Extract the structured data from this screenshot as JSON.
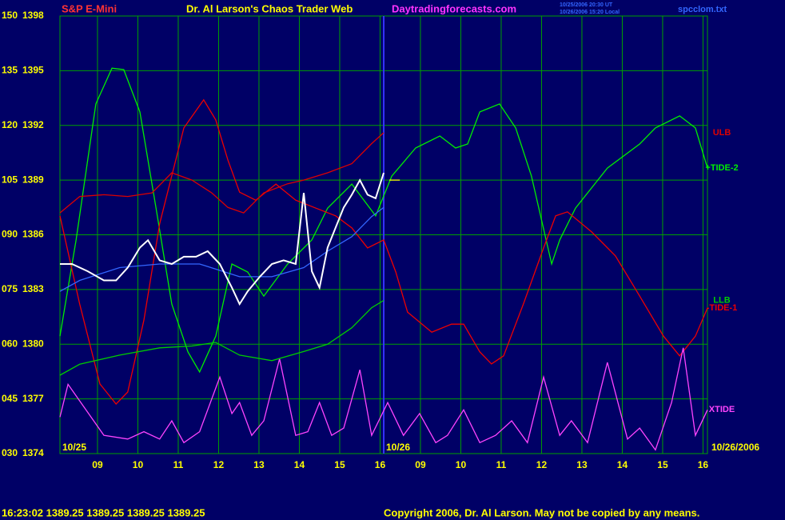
{
  "header": {
    "symbol": "S&P E-Mini",
    "title": "Dr. Al Larson's Chaos Trader Web",
    "site": "Daytradingforecasts.com",
    "notes": [
      "10/25/2006 20:30 UT",
      "10/26/2006 15:20 Local"
    ],
    "file": "spcclom.txt"
  },
  "chart_data": {
    "type": "line",
    "grid": true,
    "xlim": [
      -0.93,
      15.11
    ],
    "xticks": [
      {
        "value": 0,
        "label": "09"
      },
      {
        "value": 1,
        "label": "10"
      },
      {
        "value": 2,
        "label": "11"
      },
      {
        "value": 3,
        "label": "12"
      },
      {
        "value": 4,
        "label": "13"
      },
      {
        "value": 5,
        "label": "14"
      },
      {
        "value": 6,
        "label": "15"
      },
      {
        "value": 7,
        "label": "16"
      },
      {
        "value": 8,
        "label": "09"
      },
      {
        "value": 9,
        "label": "10"
      },
      {
        "value": 10,
        "label": "11"
      },
      {
        "value": 11,
        "label": "12"
      },
      {
        "value": 12,
        "label": "13"
      },
      {
        "value": 13,
        "label": "14"
      },
      {
        "value": 14,
        "label": "15"
      },
      {
        "value": 15,
        "label": "16"
      }
    ],
    "ylim": [
      30,
      150
    ],
    "yticks": [
      {
        "value": 30,
        "label": "030"
      },
      {
        "value": 45,
        "label": "045"
      },
      {
        "value": 60,
        "label": "060"
      },
      {
        "value": 75,
        "label": "075"
      },
      {
        "value": 90,
        "label": "090"
      },
      105,
      120,
      135,
      150
    ],
    "y2lim": [
      1374,
      1398
    ],
    "y2ticks": [
      1374,
      1377,
      1380,
      1383,
      1386,
      1389,
      1392,
      1395,
      1398
    ],
    "session_break_x": 7.09,
    "date_labels": [
      "10/25",
      "10/26",
      "10/26/2006"
    ],
    "series": [
      {
        "name": "+TIDE-2",
        "color": "#00ee00",
        "x": [
          -0.93,
          -0.53,
          -0.04,
          0.36,
          0.65,
          1.05,
          1.45,
          1.84,
          2.24,
          2.53,
          2.93,
          3.33,
          3.72,
          4.12,
          4.71,
          5.31,
          5.7,
          6.3,
          6.89,
          7.29,
          7.88,
          8.48,
          8.87,
          9.17,
          9.47,
          9.96,
          10.36,
          10.75,
          11.25,
          11.45,
          11.84,
          12.63,
          13.43,
          13.82,
          14.42,
          14.81,
          15.11
        ],
        "values": [
          62.2,
          88.6,
          125.9,
          135.7,
          135.3,
          123.7,
          97.3,
          71,
          57.9,
          52.4,
          62.2,
          82,
          79.8,
          73.2,
          82,
          88.6,
          97.3,
          103.9,
          95.2,
          106.1,
          113.8,
          117.1,
          113.8,
          114.9,
          123.7,
          125.9,
          119.3,
          106.1,
          82,
          88.6,
          97.3,
          108.3,
          114.9,
          119.3,
          122.6,
          119.3,
          108.3
        ]
      },
      {
        "name": "-TIDE-1",
        "color": "#ee0000",
        "x": [
          -0.93,
          -0.44,
          0.06,
          0.46,
          0.75,
          1.15,
          1.54,
          2.14,
          2.63,
          2.93,
          3.23,
          3.52,
          3.92,
          4.42,
          4.91,
          5.41,
          5.9,
          6.3,
          6.69,
          7.09,
          7.39,
          7.68,
          8.28,
          8.77,
          9.07,
          9.47,
          9.76,
          10.06,
          10.55,
          11.05,
          11.35,
          11.64,
          12.24,
          12.83,
          13.43,
          14.02,
          14.42,
          14.81,
          15.11
        ],
        "values": [
          95.2,
          71,
          49.1,
          43.6,
          46.9,
          66.6,
          93,
          119.3,
          127,
          121.5,
          110.5,
          101.7,
          99.5,
          103.9,
          99.5,
          97.3,
          95.2,
          91.9,
          86.4,
          88.6,
          79.8,
          68.8,
          63.3,
          65.5,
          65.5,
          57.9,
          54.6,
          56.8,
          71,
          86.4,
          95.2,
          96.3,
          90.8,
          84.2,
          73.2,
          62.2,
          56.8,
          62.2,
          69.9
        ]
      },
      {
        "name": "XTIDE",
        "color": "#ff44ff",
        "x": [
          -0.93,
          -0.73,
          0.16,
          0.75,
          1.15,
          1.54,
          1.84,
          2.14,
          2.53,
          3.03,
          3.33,
          3.52,
          3.82,
          4.12,
          4.51,
          4.91,
          5.21,
          5.5,
          5.8,
          6.1,
          6.5,
          6.79,
          7.19,
          7.58,
          7.98,
          8.38,
          8.67,
          9.07,
          9.47,
          9.86,
          10.26,
          10.65,
          11.05,
          11.45,
          11.74,
          12.14,
          12.63,
          13.13,
          13.43,
          13.82,
          14.22,
          14.51,
          14.81,
          15.11
        ],
        "values": [
          40,
          49,
          35,
          34,
          36,
          34,
          39,
          33,
          36,
          51,
          41,
          44,
          35,
          39,
          56,
          35,
          36,
          44,
          35,
          37,
          53,
          35,
          44,
          35,
          41,
          33,
          35,
          42,
          33,
          35,
          39,
          33,
          51,
          35,
          39,
          33,
          55,
          34,
          37,
          31,
          44,
          59,
          35,
          42
        ]
      },
      {
        "name": "ULB",
        "color": "#dd0000",
        "axis": "y2",
        "x": [
          -0.93,
          -0.44,
          0.16,
          0.75,
          1.35,
          1.84,
          2.34,
          2.83,
          3.23,
          3.62,
          4.12,
          4.71,
          5.11,
          5.7,
          6.3,
          6.79,
          7.09
        ],
        "values": [
          1387.2,
          1388.1,
          1388.2,
          1388.1,
          1388.3,
          1389.4,
          1389.0,
          1388.3,
          1387.5,
          1387.2,
          1388.3,
          1388.8,
          1389.0,
          1389.4,
          1389.9,
          1391.0,
          1391.6
        ]
      },
      {
        "name": "LLB",
        "color": "#00cc00",
        "axis": "y2",
        "x": [
          -0.93,
          -0.44,
          0.55,
          1.54,
          2.34,
          2.93,
          3.52,
          4.32,
          5.11,
          5.7,
          6.3,
          6.79,
          7.09
        ],
        "values": [
          1378.3,
          1378.9,
          1379.4,
          1379.8,
          1379.9,
          1380.1,
          1379.4,
          1379.1,
          1379.6,
          1380.0,
          1380.9,
          1382.0,
          1382.4
        ]
      },
      {
        "color": "#3366ff",
        "axis": "y2",
        "x": [
          -0.93,
          -0.44,
          0.55,
          1.54,
          2.53,
          3.52,
          4.32,
          5.11,
          5.7,
          6.3,
          6.79,
          7.09
        ],
        "values": [
          1382.9,
          1383.5,
          1384.2,
          1384.4,
          1384.4,
          1383.7,
          1383.7,
          1384.2,
          1385.1,
          1385.9,
          1387.0,
          1387.5
        ]
      },
      {
        "color": "#ffffff",
        "axis": "y2",
        "x": [
          -0.93,
          -0.63,
          -0.24,
          0.16,
          0.46,
          0.75,
          1.05,
          1.25,
          1.54,
          1.84,
          2.14,
          2.44,
          2.73,
          3.03,
          3.33,
          3.52,
          3.72,
          4.02,
          4.32,
          4.61,
          4.91,
          5.11,
          5.31,
          5.5,
          5.7,
          5.9,
          6.1,
          6.3,
          6.5,
          6.69,
          6.89,
          7.09
        ],
        "values": [
          1384.4,
          1384.4,
          1384.0,
          1383.5,
          1383.5,
          1384.2,
          1385.3,
          1385.7,
          1384.6,
          1384.4,
          1384.8,
          1384.8,
          1385.1,
          1384.4,
          1383.1,
          1382.2,
          1382.9,
          1383.7,
          1384.4,
          1384.6,
          1384.4,
          1388.3,
          1384.0,
          1383.1,
          1385.3,
          1386.4,
          1387.5,
          1388.2,
          1389.0,
          1388.2,
          1388.0,
          1389.4
        ]
      },
      {
        "color": "#ffff00",
        "axis": "y2",
        "x": [
          7.23,
          7.49
        ],
        "values": [
          1389,
          1389
        ]
      }
    ]
  },
  "footer": {
    "quote": "16:23:02  1389.25 1389.25 1389.25 1389.25",
    "copyright": "Copyright 2006, Dr. Al Larson. May not be copied by any means."
  }
}
